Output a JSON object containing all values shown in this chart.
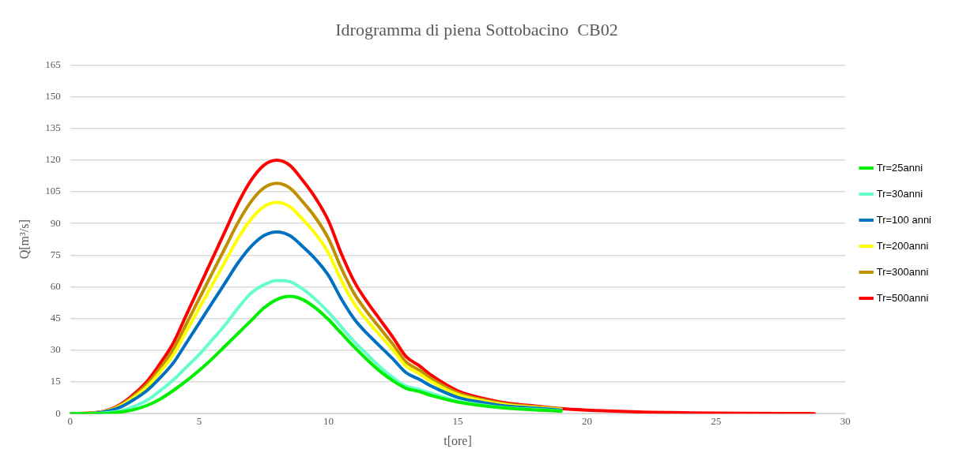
{
  "chart_data": {
    "type": "line",
    "title": "Idrogramma di piena Sottobacino  CB02",
    "xlabel": "t[ore]",
    "ylabel": "Q[m³/s]",
    "x": [
      0,
      1,
      1.5,
      2,
      2.5,
      3,
      3.5,
      4,
      4.5,
      5,
      5.5,
      6,
      6.5,
      7,
      7.5,
      8,
      8.5,
      9,
      9.5,
      10,
      10.5,
      11,
      11.5,
      12,
      12.5,
      13,
      13.5,
      14,
      15,
      16,
      17,
      18,
      19,
      20,
      22,
      24,
      26,
      28,
      28.8
    ],
    "xlim": [
      0,
      30
    ],
    "xticks": [
      0,
      5,
      10,
      15,
      20,
      25,
      30
    ],
    "ylim": [
      0,
      165
    ],
    "yticks": [
      0,
      15,
      30,
      45,
      60,
      75,
      90,
      105,
      120,
      135,
      150,
      165
    ],
    "grid": "y",
    "legend": "right",
    "marker": "none",
    "line_style": "solid",
    "series": [
      {
        "name": "Tr=25anni",
        "color": "#00ee00",
        "values": [
          0,
          0,
          0.2,
          0.8,
          2,
          4,
          7,
          11,
          15.5,
          20.5,
          26,
          32,
          38,
          44,
          50,
          54,
          55.5,
          54,
          50,
          44.5,
          38,
          31.5,
          25.5,
          20,
          15.5,
          12,
          10.5,
          8.5,
          5.5,
          3.7,
          2.5,
          1.8,
          1.2,
          null,
          null,
          null,
          null,
          null,
          null
        ]
      },
      {
        "name": "Tr=30anni",
        "color": "#66ffcc",
        "values": [
          0,
          0.1,
          0.5,
          1.5,
          3.5,
          6.5,
          11,
          16,
          22,
          28,
          35,
          42,
          50,
          57,
          61,
          63,
          62.5,
          59,
          54,
          48,
          41,
          34,
          28,
          22,
          17,
          13,
          11.5,
          9.5,
          6,
          4,
          2.7,
          2,
          1.3,
          null,
          null,
          null,
          null,
          null,
          null
        ]
      },
      {
        "name": "Tr=100 anni",
        "color": "#0070c0",
        "values": [
          0,
          0.3,
          1.3,
          3.4,
          6.9,
          11.2,
          17.2,
          24.1,
          33.5,
          43,
          52.5,
          61.9,
          71.4,
          79.1,
          84.3,
          86,
          84.3,
          79.1,
          73.1,
          65.4,
          54.2,
          44.7,
          37.8,
          31.8,
          25.8,
          19.4,
          16.3,
          12.9,
          7.7,
          5.2,
          3.4,
          2.6,
          1.7,
          null,
          null,
          null,
          null,
          null,
          null
        ]
      },
      {
        "name": "Tr=200anni",
        "color": "#ffff00",
        "values": [
          0,
          0.4,
          1.5,
          4,
          8,
          13,
          20,
          28,
          39,
          50,
          61,
          72,
          83,
          92,
          98,
          100,
          98,
          92,
          85,
          76,
          63,
          52,
          44,
          37,
          30,
          22.5,
          19,
          15,
          9,
          6,
          4,
          3,
          2,
          null,
          null,
          null,
          null,
          null,
          null
        ]
      },
      {
        "name": "Tr=300anni",
        "color": "#bf8f00",
        "values": [
          0,
          0.4,
          1.6,
          4.4,
          8.7,
          14.2,
          21.8,
          30.5,
          42.5,
          54.5,
          66.5,
          78.5,
          90.5,
          100.3,
          106.8,
          109,
          106.8,
          100.3,
          92.7,
          82.8,
          68.7,
          56.7,
          48,
          40.3,
          32.7,
          24.5,
          20.7,
          16.4,
          9.8,
          6.5,
          4.4,
          3.3,
          2.2,
          null,
          null,
          null,
          null,
          null,
          null
        ]
      },
      {
        "name": "Tr=500anni",
        "color": "#ff0000",
        "values": [
          0,
          0.5,
          1.8,
          4.8,
          9.6,
          15.6,
          24,
          33.6,
          46.8,
          60,
          73.2,
          86.4,
          99.6,
          110.4,
          117.6,
          120,
          117.6,
          110.4,
          102,
          91.2,
          75.6,
          62.4,
          52.8,
          44.4,
          36,
          27,
          22.8,
          18,
          10.8,
          7.2,
          4.8,
          3.6,
          2.4,
          1.7,
          0.8,
          0.4,
          0.2,
          0.1,
          0
        ]
      }
    ]
  }
}
